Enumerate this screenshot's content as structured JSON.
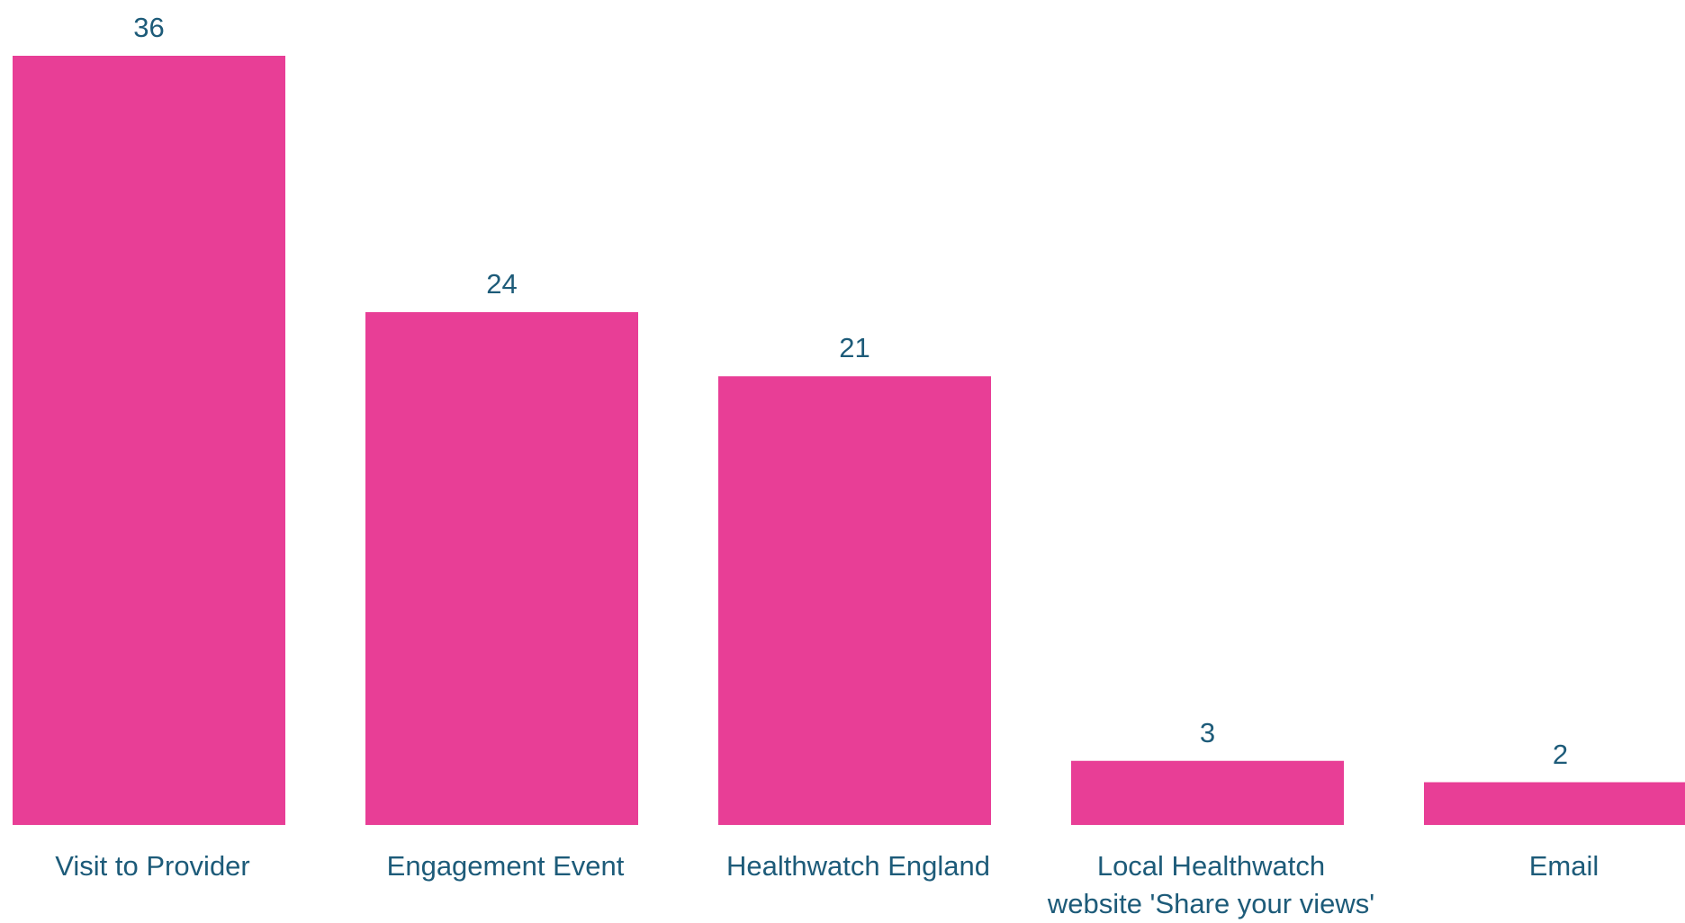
{
  "chart_data": {
    "type": "bar",
    "categories": [
      "Visit to Provider",
      "Engagement Event",
      "Healthwatch England",
      "Local Healthwatch\nwebsite 'Share your views'",
      "Email"
    ],
    "values": [
      36,
      24,
      21,
      3,
      2
    ],
    "color": "#e83e96",
    "ylim": [
      0,
      36
    ]
  }
}
